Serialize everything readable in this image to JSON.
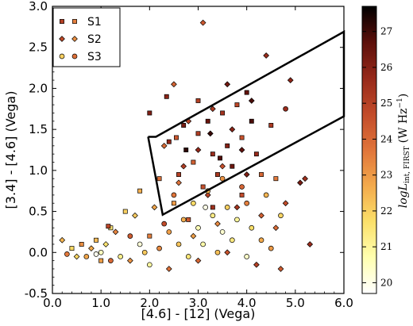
{
  "chart_data": {
    "type": "scatter",
    "title": "",
    "xlabel": "[4.6] - [12] (Vega)",
    "ylabel": "[3.4] - [4.6] (Vega)",
    "xlim": [
      0.0,
      6.0
    ],
    "ylim": [
      -0.5,
      3.0
    ],
    "x_ticks": [
      "0.0",
      "1.0",
      "2.0",
      "3.0",
      "4.0",
      "5.0",
      "6.0"
    ],
    "y_ticks": [
      "-0.5",
      "0.0",
      "0.5",
      "1.0",
      "1.5",
      "2.0",
      "2.5",
      "3.0"
    ],
    "grid": false,
    "legend_position": "top-left",
    "colorbar": {
      "label_main": "logL",
      "label_sub": "int, FIRST",
      "label_unit": "(W Hz",
      "label_exp": "−1",
      "label_close": ")",
      "range": [
        19.7,
        27.7
      ],
      "ticks": [
        "20",
        "21",
        "22",
        "23",
        "24",
        "25",
        "26",
        "27"
      ],
      "colormap": [
        "#ffffff",
        "#ffffb0",
        "#fbe06a",
        "#f3aa4c",
        "#e0743a",
        "#c24b2a",
        "#96291a",
        "#5c0f0a",
        "#000000"
      ]
    },
    "wedge_polygon": [
      [
        1.97,
        1.41
      ],
      [
        2.27,
        0.46
      ],
      [
        6.0,
        1.66
      ],
      [
        6.0,
        2.69
      ],
      [
        2.13,
        1.41
      ],
      [
        1.97,
        1.41
      ]
    ],
    "series": [
      {
        "name": "S1",
        "marker": "square",
        "points": [
          [
            2.4,
            1.35,
            25.8
          ],
          [
            2.7,
            1.55,
            26.2
          ],
          [
            3.0,
            1.45,
            25.1
          ],
          [
            3.2,
            1.6,
            26.5
          ],
          [
            3.5,
            1.7,
            25.4
          ],
          [
            3.8,
            1.8,
            24.8
          ],
          [
            4.1,
            1.6,
            26.9
          ],
          [
            3.3,
            1.2,
            25.6
          ],
          [
            2.9,
            1.1,
            24.2
          ],
          [
            2.6,
            0.95,
            25.0
          ],
          [
            3.6,
            1.3,
            26.0
          ],
          [
            3.9,
            1.4,
            24.5
          ],
          [
            4.2,
            1.2,
            25.7
          ],
          [
            2.2,
            0.9,
            23.8
          ],
          [
            2.5,
            0.6,
            23.0
          ],
          [
            3.1,
            0.8,
            24.6
          ],
          [
            3.4,
            0.95,
            25.3
          ],
          [
            3.7,
            1.05,
            26.4
          ],
          [
            4.3,
            0.95,
            24.0
          ],
          [
            4.5,
            1.55,
            25.2
          ],
          [
            1.8,
            0.75,
            22.6
          ],
          [
            1.5,
            0.5,
            22.0
          ],
          [
            1.2,
            0.3,
            21.5
          ],
          [
            0.9,
            0.15,
            22.4
          ],
          [
            0.6,
            0.1,
            23.2
          ],
          [
            0.4,
            0.05,
            21.8
          ],
          [
            1.0,
            -0.1,
            22.9
          ],
          [
            2.0,
            0.2,
            23.5
          ],
          [
            2.8,
            0.4,
            24.3
          ],
          [
            3.3,
            0.55,
            25.5
          ],
          [
            3.9,
            0.7,
            24.7
          ],
          [
            4.6,
            0.9,
            23.6
          ],
          [
            2.35,
            1.9,
            25.9
          ],
          [
            2.0,
            1.7,
            26.1
          ],
          [
            1.15,
            0.32,
            24.9
          ],
          [
            4.0,
            1.95,
            26.6
          ],
          [
            3.0,
            1.85,
            25.0
          ],
          [
            2.75,
            1.25,
            27.2
          ],
          [
            3.45,
            1.15,
            26.8
          ],
          [
            2.55,
            1.4,
            24.4
          ]
        ]
      },
      {
        "name": "S2",
        "marker": "diamond",
        "points": [
          [
            3.1,
            2.8,
            24.4
          ],
          [
            4.4,
            2.4,
            25.6
          ],
          [
            2.5,
            2.05,
            24.1
          ],
          [
            3.6,
            2.05,
            26.3
          ],
          [
            4.9,
            2.1,
            25.8
          ],
          [
            4.1,
            1.85,
            26.9
          ],
          [
            3.3,
            1.75,
            25.2
          ],
          [
            2.8,
            1.6,
            24.8
          ],
          [
            3.7,
            1.5,
            25.9
          ],
          [
            2.3,
            1.3,
            23.9
          ],
          [
            3.0,
            1.25,
            25.7
          ],
          [
            3.5,
            1.05,
            24.6
          ],
          [
            4.0,
            0.95,
            26.1
          ],
          [
            2.6,
            0.85,
            23.7
          ],
          [
            3.2,
            0.7,
            24.9
          ],
          [
            3.8,
            0.55,
            25.3
          ],
          [
            4.3,
            0.45,
            24.2
          ],
          [
            2.1,
            0.55,
            22.8
          ],
          [
            1.7,
            0.45,
            22.1
          ],
          [
            1.3,
            0.25,
            23.4
          ],
          [
            0.2,
            0.15,
            22.5
          ],
          [
            0.5,
            -0.05,
            21.9
          ],
          [
            0.8,
            0.05,
            22.7
          ],
          [
            1.6,
            -0.1,
            23.1
          ],
          [
            2.4,
            -0.2,
            23.8
          ],
          [
            3.0,
            -0.1,
            24.0
          ],
          [
            3.6,
            0.0,
            24.5
          ],
          [
            4.2,
            -0.15,
            25.0
          ],
          [
            4.7,
            -0.2,
            24.3
          ],
          [
            5.3,
            0.1,
            25.6
          ],
          [
            5.1,
            0.85,
            26.2
          ],
          [
            4.6,
            0.3,
            23.9
          ],
          [
            2.9,
            0.2,
            22.9
          ],
          [
            3.4,
            0.35,
            23.3
          ],
          [
            4.8,
            0.6,
            24.7
          ],
          [
            5.2,
            0.9,
            25.5
          ],
          [
            1.1,
            0.1,
            21.6
          ],
          [
            2.7,
            1.05,
            25.1
          ],
          [
            3.9,
            1.25,
            26.6
          ],
          [
            3.25,
            1.45,
            27.1
          ]
        ]
      },
      {
        "name": "S3",
        "marker": "circle",
        "points": [
          [
            4.8,
            1.75,
            25.6
          ],
          [
            3.5,
            0.9,
            23.1
          ],
          [
            3.2,
            0.75,
            22.4
          ],
          [
            2.9,
            0.6,
            21.8
          ],
          [
            3.6,
            0.55,
            22.0
          ],
          [
            4.0,
            0.6,
            23.5
          ],
          [
            3.3,
            0.45,
            21.3
          ],
          [
            2.7,
            0.4,
            22.6
          ],
          [
            3.8,
            0.4,
            21.0
          ],
          [
            3.0,
            0.3,
            20.6
          ],
          [
            2.4,
            0.25,
            22.9
          ],
          [
            3.5,
            0.25,
            20.3
          ],
          [
            4.1,
            0.3,
            21.7
          ],
          [
            2.6,
            0.1,
            22.2
          ],
          [
            3.1,
            0.1,
            20.8
          ],
          [
            3.7,
            0.15,
            21.4
          ],
          [
            4.3,
            0.15,
            22.7
          ],
          [
            2.2,
            0.05,
            23.3
          ],
          [
            1.9,
            0.0,
            22.1
          ],
          [
            1.4,
            -0.05,
            21.2
          ],
          [
            1.0,
            0.0,
            20.5
          ],
          [
            0.7,
            -0.05,
            22.8
          ],
          [
            0.3,
            -0.02,
            23.6
          ],
          [
            1.2,
            -0.1,
            24.0
          ],
          [
            2.0,
            -0.15,
            20.9
          ],
          [
            2.8,
            -0.05,
            21.5
          ],
          [
            3.4,
            0.0,
            22.3
          ],
          [
            4.0,
            -0.05,
            20.4
          ],
          [
            4.5,
            0.05,
            23.0
          ],
          [
            1.6,
            0.2,
            24.3
          ],
          [
            2.3,
            0.35,
            24.7
          ],
          [
            3.9,
            0.8,
            24.1
          ],
          [
            2.5,
            0.7,
            23.7
          ],
          [
            4.4,
            0.7,
            22.5
          ],
          [
            4.7,
            0.45,
            21.9
          ],
          [
            0.9,
            -0.02,
            19.9
          ],
          [
            1.8,
            0.1,
            20.2
          ],
          [
            3.15,
            0.55,
            20.0
          ]
        ]
      }
    ]
  }
}
